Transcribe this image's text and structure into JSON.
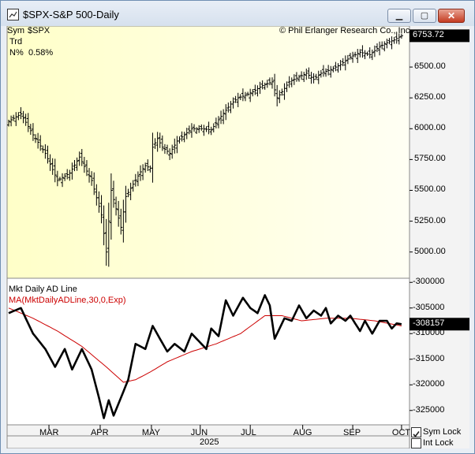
{
  "window": {
    "title": "$SPX-S&P 500-Daily",
    "minimize_glyph": "▁",
    "maximize_glyph": "▢",
    "close_glyph": "✕"
  },
  "info": {
    "sym_label": "Sym",
    "sym_value": "$SPX",
    "trd_label": "Trd",
    "n_label": "N%",
    "n_value": "0.58%"
  },
  "copyright": "© Phil Erlanger Research Co., Inc.",
  "controls": {
    "sym_lock": "Sym Lock",
    "int_lock": "Int Lock",
    "sym_lock_checked": true,
    "int_lock_checked": false
  },
  "colors": {
    "ma_line": "#cc0000",
    "price_bg_left": "#ffffc8",
    "price_bg_right": "#fffff4",
    "flag_bg": "#000000"
  },
  "chart_data": [
    {
      "type": "ohlc",
      "title": "$SPX-S&P 500-Daily",
      "last_value_label": "6753.72",
      "yticks": [
        5000,
        5250,
        5500,
        5750,
        6000,
        6250,
        6500
      ],
      "ytick_labels": [
        "5000.00",
        "5250.00",
        "5500.00",
        "5750.00",
        "6000.00",
        "6250.00",
        "6500.00"
      ],
      "ylim": [
        4800,
        6820
      ],
      "xlim": [
        0,
        162
      ],
      "x_axis": {
        "month_labels": [
          "MAR",
          "APR",
          "MAY",
          "JUN",
          "JUL",
          "AUG",
          "SEP",
          "OCT"
        ],
        "month_positions": [
          16.5,
          37.5,
          58.5,
          78.5,
          99,
          120.5,
          141,
          161
        ],
        "year_label": "2025"
      },
      "close_keypoints": [
        [
          0,
          6060
        ],
        [
          5,
          6120
        ],
        [
          10,
          5950
        ],
        [
          15,
          5800
        ],
        [
          20,
          5580
        ],
        [
          25,
          5640
        ],
        [
          29,
          5770
        ],
        [
          34,
          5580
        ],
        [
          38,
          5300
        ],
        [
          40,
          5000
        ],
        [
          42,
          5500
        ],
        [
          44,
          5350
        ],
        [
          46,
          5200
        ],
        [
          48,
          5450
        ],
        [
          51,
          5550
        ],
        [
          54,
          5650
        ],
        [
          56,
          5700
        ],
        [
          58,
          5680
        ],
        [
          59,
          5850
        ],
        [
          61,
          5920
        ],
        [
          63,
          5850
        ],
        [
          66,
          5800
        ],
        [
          69,
          5900
        ],
        [
          72,
          5950
        ],
        [
          75,
          6000
        ],
        [
          79,
          6000
        ],
        [
          83,
          5990
        ],
        [
          87,
          6100
        ],
        [
          91,
          6200
        ],
        [
          94,
          6250
        ],
        [
          97,
          6270
        ],
        [
          100,
          6300
        ],
        [
          104,
          6350
        ],
        [
          108,
          6380
        ],
        [
          110,
          6250
        ],
        [
          112,
          6300
        ],
        [
          115,
          6380
        ],
        [
          119,
          6420
        ],
        [
          122,
          6450
        ],
        [
          125,
          6400
        ],
        [
          128,
          6450
        ],
        [
          132,
          6480
        ],
        [
          136,
          6520
        ],
        [
          140,
          6580
        ],
        [
          144,
          6620
        ],
        [
          148,
          6600
        ],
        [
          151,
          6650
        ],
        [
          154,
          6690
        ],
        [
          158,
          6720
        ],
        [
          161,
          6753.72
        ]
      ]
    },
    {
      "type": "line",
      "title": "Mkt Daily AD Line",
      "legend": [
        "Mkt Daily AD Line",
        "MA(MktDailyADLine,30,0,Exp)"
      ],
      "last_value_label": "-308157",
      "yticks": [
        -300000,
        -305000,
        -310000,
        -315000,
        -320000,
        -325000
      ],
      "ytick_labels": [
        "-300000",
        "-305000",
        "-310000",
        "-315000",
        "-320000",
        "-325000"
      ],
      "ylim": [
        -327500,
        -299500
      ],
      "xlim": [
        0,
        162
      ],
      "series": [
        {
          "name": "Mkt Daily AD Line",
          "keypoints": [
            [
              0,
              -306000
            ],
            [
              5,
              -305000
            ],
            [
              10,
              -310000
            ],
            [
              15,
              -313000
            ],
            [
              19,
              -316500
            ],
            [
              23,
              -313000
            ],
            [
              26,
              -317000
            ],
            [
              30,
              -313000
            ],
            [
              34,
              -317000
            ],
            [
              37,
              -322500
            ],
            [
              39,
              -326500
            ],
            [
              41,
              -323000
            ],
            [
              43,
              -326000
            ],
            [
              46,
              -322500
            ],
            [
              49,
              -319000
            ],
            [
              52,
              -312000
            ],
            [
              56,
              -313000
            ],
            [
              59,
              -308500
            ],
            [
              62,
              -311000
            ],
            [
              65,
              -313500
            ],
            [
              68,
              -312000
            ],
            [
              72,
              -313500
            ],
            [
              75,
              -310000
            ],
            [
              78,
              -311500
            ],
            [
              81,
              -313000
            ],
            [
              83,
              -309000
            ],
            [
              86,
              -310500
            ],
            [
              89,
              -303500
            ],
            [
              92,
              -306500
            ],
            [
              96,
              -303000
            ],
            [
              99,
              -305000
            ],
            [
              102,
              -306000
            ],
            [
              105,
              -302500
            ],
            [
              107,
              -304500
            ],
            [
              109,
              -311000
            ],
            [
              111,
              -309000
            ],
            [
              113,
              -307000
            ],
            [
              116,
              -307500
            ],
            [
              119,
              -304500
            ],
            [
              122,
              -307000
            ],
            [
              125,
              -305500
            ],
            [
              128,
              -306500
            ],
            [
              130,
              -305000
            ],
            [
              132,
              -308000
            ],
            [
              135,
              -306500
            ],
            [
              138,
              -307500
            ],
            [
              140,
              -306500
            ],
            [
              142,
              -308000
            ],
            [
              144,
              -309500
            ],
            [
              146,
              -307500
            ],
            [
              149,
              -310000
            ],
            [
              152,
              -307500
            ],
            [
              155,
              -307500
            ],
            [
              157,
              -309000
            ],
            [
              159,
              -308000
            ],
            [
              161,
              -308157
            ]
          ]
        },
        {
          "name": "MA(MktDailyADLine,30,0,Exp)",
          "keypoints": [
            [
              0,
              -305000
            ],
            [
              10,
              -307000
            ],
            [
              20,
              -309500
            ],
            [
              30,
              -312500
            ],
            [
              40,
              -316500
            ],
            [
              47,
              -319500
            ],
            [
              52,
              -319000
            ],
            [
              58,
              -317500
            ],
            [
              65,
              -315500
            ],
            [
              75,
              -313500
            ],
            [
              85,
              -312000
            ],
            [
              95,
              -310000
            ],
            [
              105,
              -306500
            ],
            [
              112,
              -306500
            ],
            [
              120,
              -307500
            ],
            [
              130,
              -307000
            ],
            [
              140,
              -307000
            ],
            [
              150,
              -307500
            ],
            [
              161,
              -308500
            ]
          ]
        }
      ]
    }
  ]
}
